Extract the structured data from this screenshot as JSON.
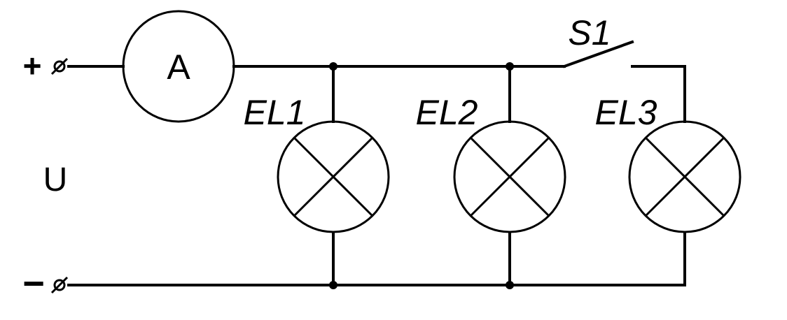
{
  "diagram": {
    "terminals": {
      "plus": "+",
      "minus": "−"
    },
    "voltage_label": "U",
    "ammeter_label": "A",
    "switch_label": "S1",
    "lamps": [
      {
        "label": "EL1"
      },
      {
        "label": "EL2"
      },
      {
        "label": "EL3"
      }
    ],
    "colors": {
      "line": "#000000",
      "background": "#ffffff"
    },
    "icons": {
      "terminal": "terminal-icon",
      "lamp": "lamp-icon",
      "ammeter": "ammeter-icon",
      "switch": "switch-icon"
    }
  }
}
